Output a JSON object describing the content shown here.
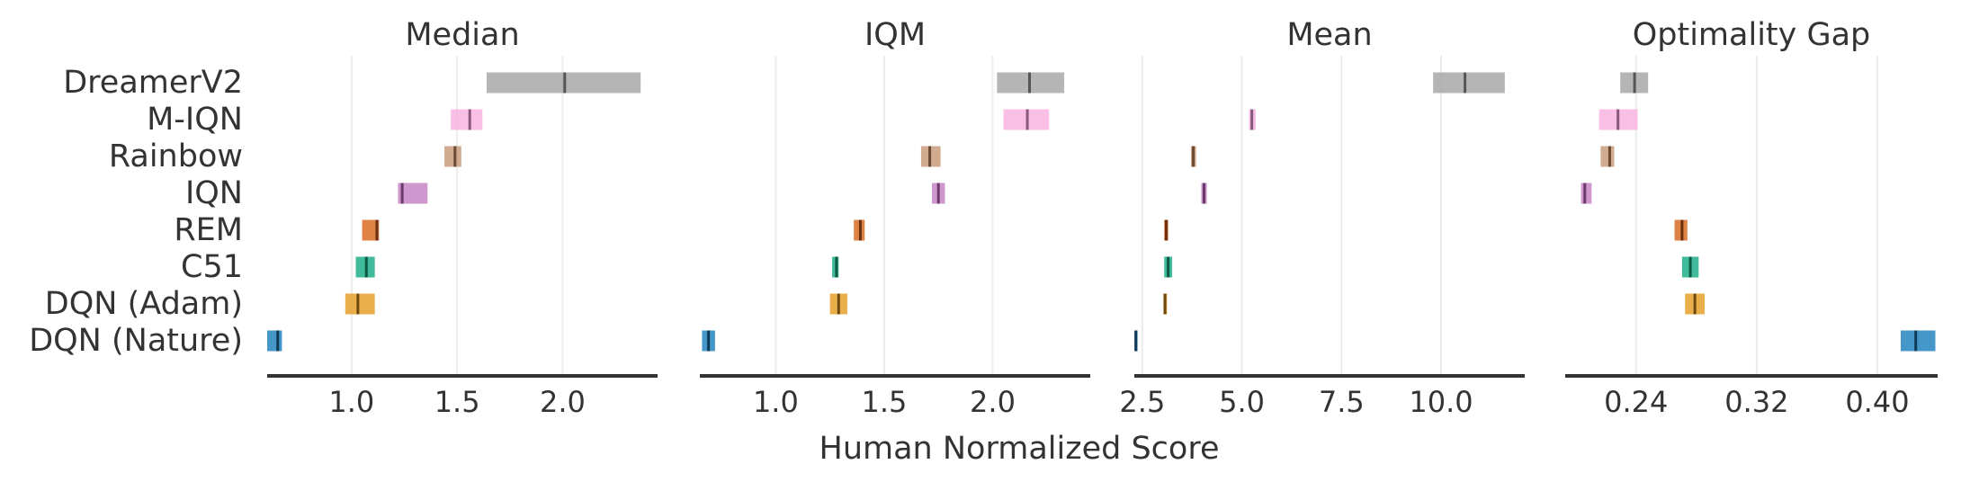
{
  "methods": [
    "DreamerV2",
    "M-IQN",
    "Rainbow",
    "IQN",
    "REM",
    "C51",
    "DQN (Adam)",
    "DQN (Nature)"
  ],
  "colors": {
    "DreamerV2": "#a8a8a8",
    "M-IQN": "#f8b4e2",
    "Rainbow": "#c99c7b",
    "IQN": "#c585c6",
    "REM": "#d96c25",
    "C51": "#1fae88",
    "DQN (Adam)": "#e6a02c",
    "DQN (Nature)": "#2385be"
  },
  "median_colors": {
    "DreamerV2": "#555555",
    "M-IQN": "#8a5a7a",
    "Rainbow": "#6a4a33",
    "IQN": "#6a3a6a",
    "REM": "#6a3010",
    "C51": "#0c5a44",
    "DQN (Adam)": "#6e4a10",
    "DQN (Nature)": "#0e3a58"
  },
  "xlabel": "Human Normalized Score",
  "chart_data": [
    {
      "type": "interval",
      "title": "Median",
      "xlim": [
        0.6,
        2.45
      ],
      "xticks": [
        1.0,
        1.5,
        2.0
      ],
      "tick_labels": [
        "1.0",
        "1.5",
        "2.0"
      ],
      "intervals": [
        {
          "method": "DreamerV2",
          "low": 1.64,
          "point": 2.01,
          "high": 2.37
        },
        {
          "method": "M-IQN",
          "low": 1.47,
          "point": 1.56,
          "high": 1.62
        },
        {
          "method": "Rainbow",
          "low": 1.44,
          "point": 1.49,
          "high": 1.52
        },
        {
          "method": "IQN",
          "low": 1.22,
          "point": 1.24,
          "high": 1.36
        },
        {
          "method": "REM",
          "low": 1.05,
          "point": 1.12,
          "high": 1.13
        },
        {
          "method": "C51",
          "low": 1.02,
          "point": 1.07,
          "high": 1.11
        },
        {
          "method": "DQN (Adam)",
          "low": 0.97,
          "point": 1.03,
          "high": 1.11
        },
        {
          "method": "DQN (Nature)",
          "low": 0.6,
          "point": 0.65,
          "high": 0.67
        }
      ]
    },
    {
      "type": "interval",
      "title": "IQM",
      "xlim": [
        0.65,
        2.45
      ],
      "xticks": [
        1.0,
        1.5,
        2.0
      ],
      "tick_labels": [
        "1.0",
        "1.5",
        "2.0"
      ],
      "intervals": [
        {
          "method": "DreamerV2",
          "low": 2.02,
          "point": 2.17,
          "high": 2.33
        },
        {
          "method": "M-IQN",
          "low": 2.05,
          "point": 2.16,
          "high": 2.26
        },
        {
          "method": "Rainbow",
          "low": 1.67,
          "point": 1.71,
          "high": 1.76
        },
        {
          "method": "IQN",
          "low": 1.72,
          "point": 1.75,
          "high": 1.78
        },
        {
          "method": "REM",
          "low": 1.36,
          "point": 1.39,
          "high": 1.41
        },
        {
          "method": "C51",
          "low": 1.26,
          "point": 1.28,
          "high": 1.29
        },
        {
          "method": "DQN (Adam)",
          "low": 1.25,
          "point": 1.29,
          "high": 1.33
        },
        {
          "method": "DQN (Nature)",
          "low": 0.66,
          "point": 0.69,
          "high": 0.72
        }
      ]
    },
    {
      "type": "interval",
      "title": "Mean",
      "xlim": [
        2.3,
        12.1
      ],
      "xticks": [
        2.5,
        5.0,
        7.5,
        10.0
      ],
      "tick_labels": [
        "2.5",
        "5.0",
        "7.5",
        "10.0"
      ],
      "intervals": [
        {
          "method": "DreamerV2",
          "low": 9.8,
          "point": 10.6,
          "high": 11.6
        },
        {
          "method": "M-IQN",
          "low": 5.18,
          "point": 5.25,
          "high": 5.35
        },
        {
          "method": "Rainbow",
          "low": 3.72,
          "point": 3.78,
          "high": 3.85
        },
        {
          "method": "IQN",
          "low": 3.98,
          "point": 4.05,
          "high": 4.12
        },
        {
          "method": "REM",
          "low": 3.05,
          "point": 3.1,
          "high": 3.15
        },
        {
          "method": "C51",
          "low": 3.05,
          "point": 3.15,
          "high": 3.25
        },
        {
          "method": "DQN (Adam)",
          "low": 3.03,
          "point": 3.07,
          "high": 3.12
        },
        {
          "method": "DQN (Nature)",
          "low": 2.3,
          "point": 2.34,
          "high": 2.38
        }
      ]
    },
    {
      "type": "interval",
      "title": "Optimality Gap",
      "xlim": [
        0.193,
        0.44
      ],
      "xticks": [
        0.24,
        0.32,
        0.4
      ],
      "tick_labels": [
        "0.24",
        "0.32",
        "0.40"
      ],
      "intervals": [
        {
          "method": "DreamerV2",
          "low": 0.2295,
          "point": 0.239,
          "high": 0.248
        },
        {
          "method": "M-IQN",
          "low": 0.2155,
          "point": 0.228,
          "high": 0.241
        },
        {
          "method": "Rainbow",
          "low": 0.2165,
          "point": 0.2225,
          "high": 0.2255
        },
        {
          "method": "IQN",
          "low": 0.2035,
          "point": 0.206,
          "high": 0.2105
        },
        {
          "method": "REM",
          "low": 0.2655,
          "point": 0.2705,
          "high": 0.274
        },
        {
          "method": "C51",
          "low": 0.2705,
          "point": 0.276,
          "high": 0.2815
        },
        {
          "method": "DQN (Adam)",
          "low": 0.2725,
          "point": 0.279,
          "high": 0.2855
        },
        {
          "method": "DQN (Nature)",
          "low": 0.4155,
          "point": 0.4255,
          "high": 0.4385
        }
      ]
    }
  ]
}
